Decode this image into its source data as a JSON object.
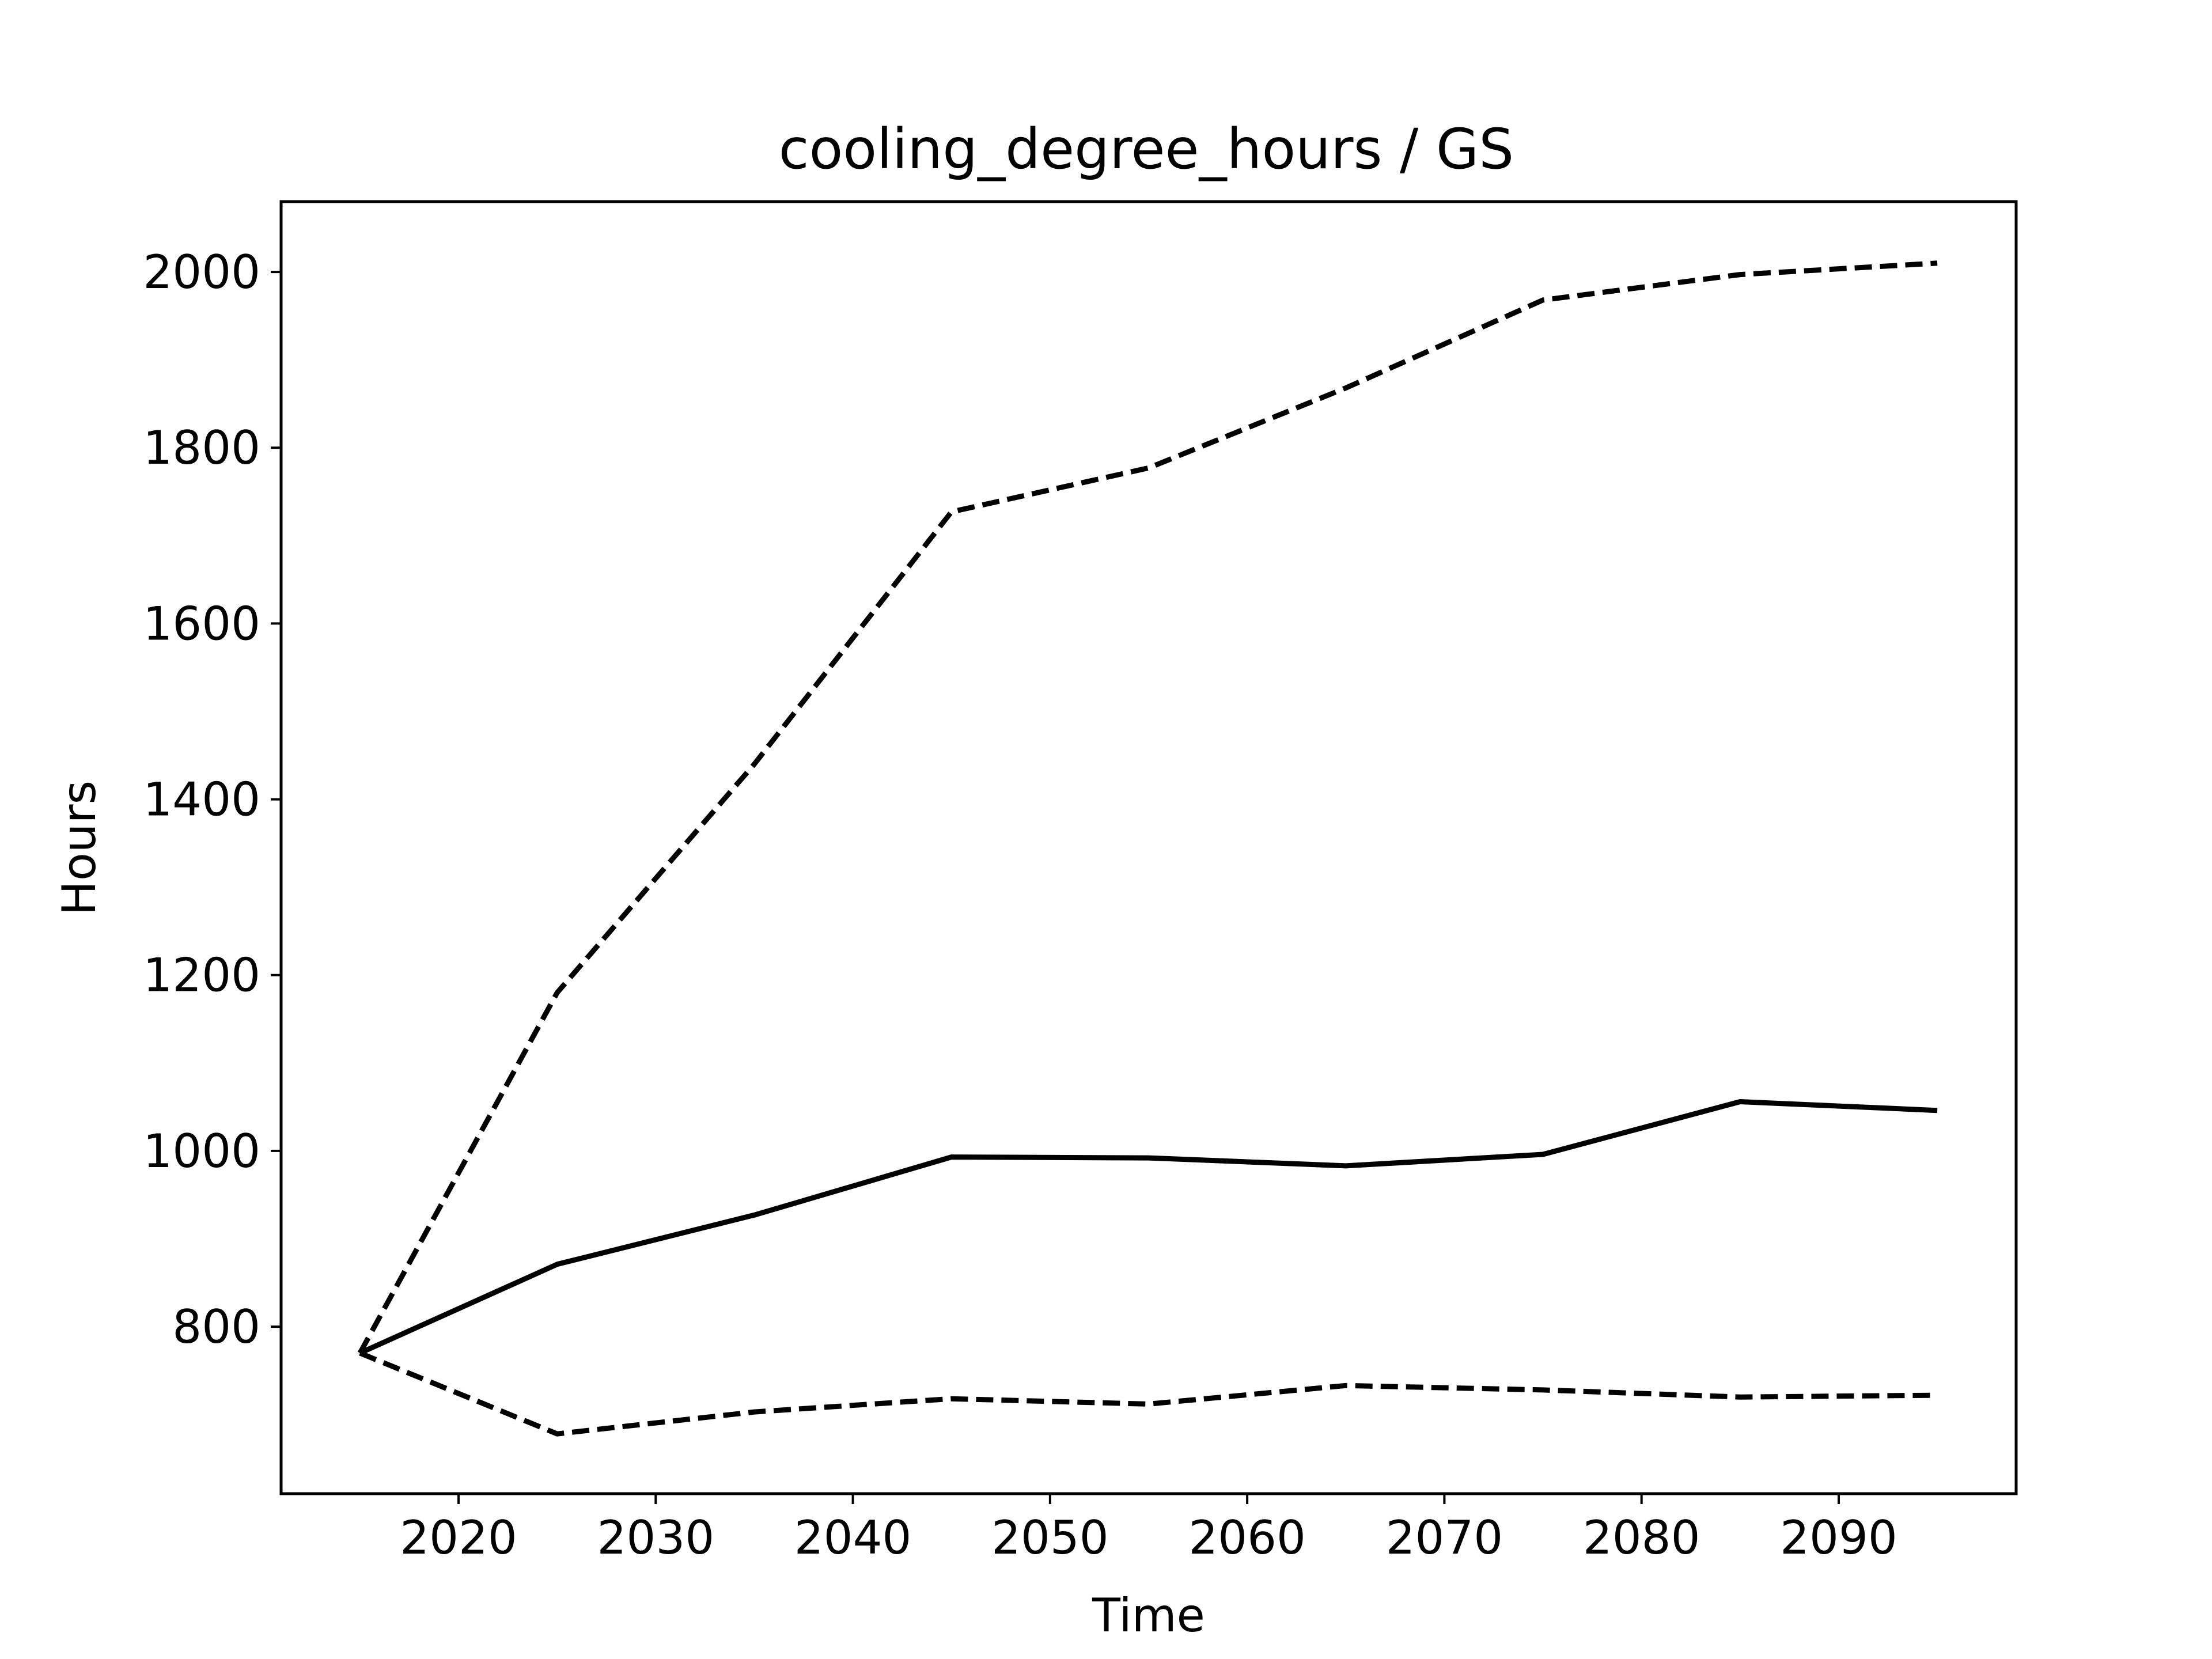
{
  "chart_data": {
    "type": "line",
    "title": "cooling_degree_hours / GS",
    "xlabel": "Time",
    "ylabel": "Hours",
    "x": [
      2015,
      2025,
      2035,
      2045,
      2055,
      2065,
      2075,
      2085,
      2095
    ],
    "xlim": [
      2011,
      2099
    ],
    "ylim": [
      610,
      2080
    ],
    "xticks": [
      2020,
      2030,
      2040,
      2050,
      2060,
      2070,
      2080,
      2090
    ],
    "yticks": [
      800,
      1000,
      1200,
      1400,
      1600,
      1800,
      2000
    ],
    "grid": false,
    "legend": "none",
    "series": [
      {
        "values": [
          770,
          1180,
          1440,
          1727,
          1777,
          1868,
          1968,
          1997,
          2010
        ],
        "style": "dashed",
        "color": "#000000"
      },
      {
        "values": [
          770,
          871,
          927,
          993,
          992,
          983,
          996,
          1056,
          1046
        ],
        "style": "solid",
        "color": "#000000"
      },
      {
        "values": [
          770,
          678,
          703,
          718,
          712,
          733,
          728,
          720,
          722
        ],
        "style": "dashed",
        "color": "#000000"
      }
    ]
  }
}
